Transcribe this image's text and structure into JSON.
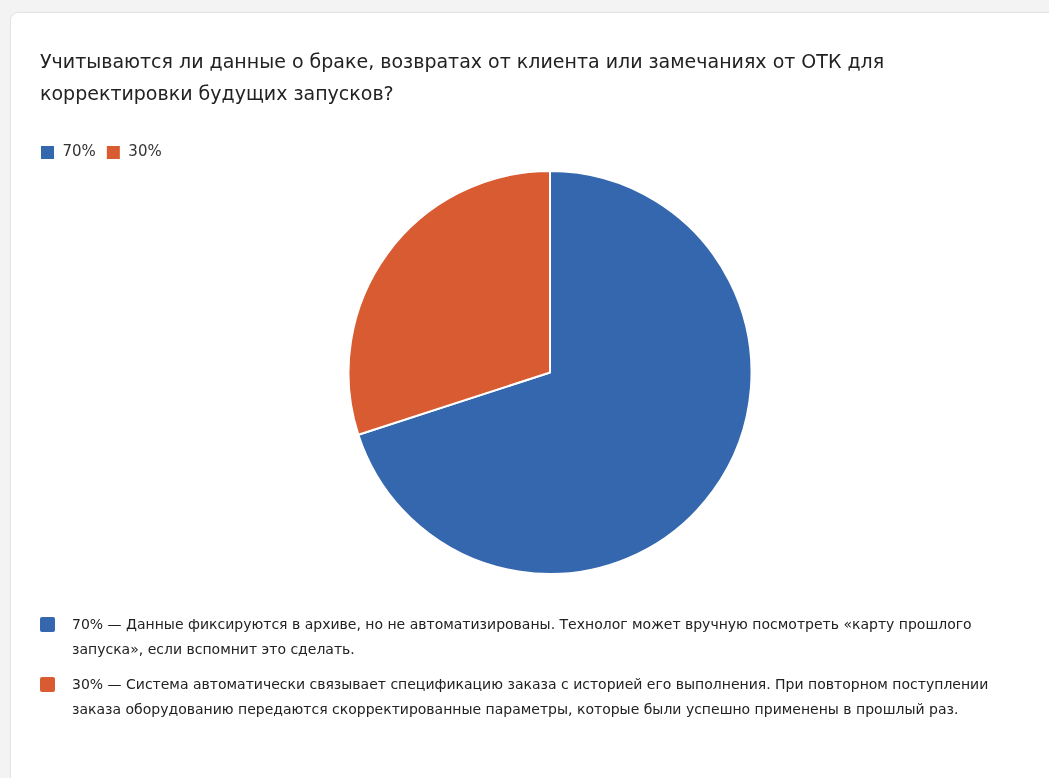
{
  "chart_data": {
    "type": "pie",
    "title": "Учитываются ли данные о браке, возвратах от клиента или замечаниях от ОТК для корректировки будущих запусков?",
    "categories": [
      "70%",
      "30%"
    ],
    "values": [
      70,
      30
    ],
    "colors": [
      "#3467ae",
      "#d95b32"
    ],
    "legend": "top left",
    "annotations": [
      "70% — Данные фиксируются в архиве, но не автоматизированы. Технолог может вручную посмотреть «карту прошлого запуска», если вспомнит это сделать.",
      "30% — Система автоматически связывает спецификацию заказа с историей его выполнения. При повторном поступлении заказа оборудованию передаются скорректированные параметры, которые были успешно применены в прошлый раз."
    ]
  }
}
